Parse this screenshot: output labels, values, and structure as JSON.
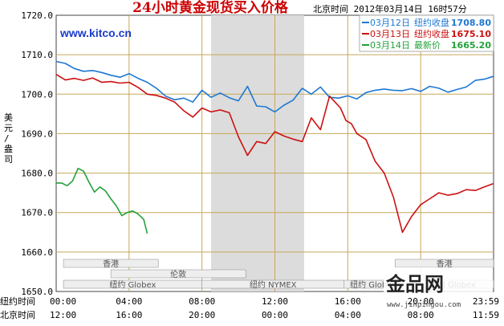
{
  "chart_data": {
    "type": "line",
    "title": "24小时黄金现货买入价格",
    "timestamp": "北京时间  2012年03月14日 16时57分",
    "ylabel": "美元/盎司",
    "ylim": [
      1650,
      1720
    ],
    "yticks": [
      "1720.0",
      "1710.0",
      "1700.0",
      "1690.0",
      "1680.0",
      "1670.0",
      "1660.0",
      "1650.0"
    ],
    "xaxis_rows": [
      {
        "label": "纽约时间",
        "ticks": [
          "00:00",
          "04:00",
          "08:00",
          "12:00",
          "16:00",
          "20:00",
          "23:59"
        ]
      },
      {
        "label": "北京时间",
        "ticks": [
          "12:00",
          "16:00",
          "20:00",
          "00:00",
          "04:00",
          "08:00",
          "11:59"
        ]
      }
    ],
    "watermark": "www.kitco.cn",
    "sessions": [
      "香港",
      "伦敦",
      "纽约 Globex",
      "纽约 NYMEX",
      "纽约 Globex",
      "香港",
      "纽约 Globex"
    ],
    "series": [
      {
        "name": "03月12日",
        "legend_label": "纽约收盘",
        "legend_value": "1708.80",
        "color": "#1e78d2",
        "x": [
          0,
          0.5,
          1,
          1.5,
          2,
          2.5,
          3,
          3.5,
          4,
          4.5,
          5,
          5.5,
          6,
          6.5,
          7,
          7.5,
          8,
          8.5,
          9,
          9.5,
          10,
          10.5,
          11,
          11.5,
          12,
          12.5,
          13,
          13.5,
          14,
          14.5,
          15,
          15.5,
          16,
          16.5,
          17,
          17.5,
          18,
          18.5,
          19,
          19.5,
          20,
          20.5,
          21,
          21.5,
          22,
          22.5,
          23,
          23.5,
          23.98
        ],
        "y": [
          1708.3,
          1707.8,
          1706.5,
          1705.8,
          1706.0,
          1705.5,
          1704.8,
          1704.3,
          1705.2,
          1704.0,
          1703.0,
          1701.5,
          1699.5,
          1698.6,
          1699.0,
          1698.0,
          1701.0,
          1699.2,
          1700.3,
          1699.1,
          1698.3,
          1702.0,
          1697.0,
          1696.8,
          1695.5,
          1697.2,
          1698.5,
          1701.5,
          1700.0,
          1701.8,
          1699.2,
          1699.0,
          1699.6,
          1698.8,
          1700.4,
          1701.0,
          1701.3,
          1701.0,
          1700.9,
          1701.4,
          1700.7,
          1702.0,
          1701.5,
          1700.5,
          1701.2,
          1701.8,
          1703.5,
          1703.8,
          1704.5
        ]
      },
      {
        "name": "03月13日",
        "legend_label": "纽约收盘",
        "legend_value": "1675.10",
        "color": "#cc1111",
        "x": [
          0,
          0.5,
          1,
          1.5,
          2,
          2.5,
          3,
          3.5,
          4,
          4.5,
          5,
          5.5,
          6,
          6.5,
          7,
          7.5,
          8,
          8.5,
          9,
          9.5,
          10,
          10.5,
          11,
          11.5,
          12,
          12.5,
          13,
          13.5,
          14,
          14.5,
          15,
          15.3,
          15.6,
          15.9,
          16.2,
          16.5,
          17,
          17.5,
          18,
          18.5,
          19,
          19.5,
          20,
          20.5,
          21,
          21.5,
          22,
          22.5,
          23,
          23.5,
          23.98
        ],
        "y": [
          1705.0,
          1703.6,
          1704.0,
          1703.5,
          1704.1,
          1703.0,
          1703.2,
          1702.8,
          1703.0,
          1701.7,
          1700.0,
          1699.7,
          1699.0,
          1698.0,
          1695.8,
          1694.2,
          1696.5,
          1695.5,
          1696.0,
          1695.3,
          1689.2,
          1684.5,
          1688.0,
          1687.5,
          1690.5,
          1689.4,
          1688.6,
          1688.0,
          1694.0,
          1691.0,
          1699.5,
          1698.0,
          1696.5,
          1693.3,
          1692.5,
          1690.0,
          1688.5,
          1683.0,
          1680.0,
          1674.0,
          1665.0,
          1669.0,
          1672.0,
          1673.5,
          1675.0,
          1674.4,
          1674.8,
          1675.8,
          1675.6,
          1676.5,
          1677.3
        ]
      },
      {
        "name": "03月14日",
        "legend_label": "最新价",
        "legend_value": "1665.20",
        "color": "#23a23a",
        "x": [
          0,
          0.3,
          0.6,
          0.9,
          1.2,
          1.5,
          1.8,
          2.1,
          2.4,
          2.7,
          3.0,
          3.3,
          3.6,
          3.9,
          4.2,
          4.5,
          4.8,
          5.0
        ],
        "y": [
          1677.5,
          1677.5,
          1676.8,
          1678.0,
          1681.2,
          1680.5,
          1677.7,
          1675.2,
          1676.5,
          1675.5,
          1673.5,
          1671.7,
          1669.2,
          1670.0,
          1670.4,
          1669.6,
          1668.3,
          1664.7
        ]
      }
    ]
  },
  "brand": {
    "name": "金品网",
    "url": "www.jinpingou.com"
  }
}
